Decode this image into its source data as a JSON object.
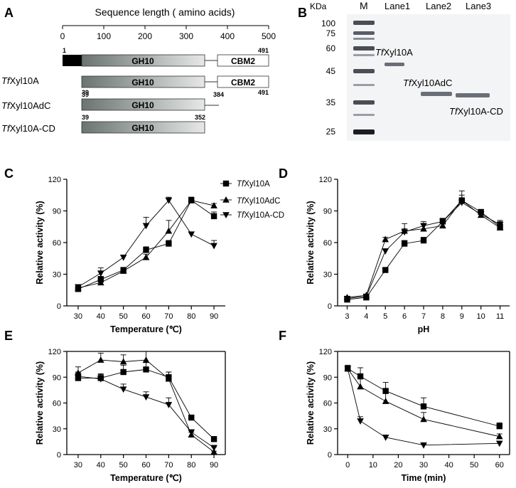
{
  "panel_labels": {
    "A": "A",
    "B": "B",
    "C": "C",
    "D": "D",
    "E": "E",
    "F": "F"
  },
  "panel_a": {
    "scale_title": "Sequence length ( amino acids)",
    "scale_ticks": [
      "0",
      "100",
      "200",
      "300",
      "400",
      "500"
    ],
    "full_start": "1",
    "full_end": "491",
    "domain_gh10": "GH10",
    "domain_cbm2": "CBM2",
    "constructs": [
      {
        "italic": "Tf",
        "rest": "Xyl10A",
        "start": "39",
        "end": "491",
        "has_cbm2": true
      },
      {
        "italic": "Tf",
        "rest": "Xyl10AdC",
        "start": "39",
        "end": "384",
        "has_cbm2": false
      },
      {
        "italic": "Tf",
        "rest": "Xyl10A-CD",
        "start": "39",
        "end": "352",
        "has_cbm2": false
      }
    ]
  },
  "panel_b": {
    "kda_label": "KDa",
    "marker_label": "M",
    "lanes": [
      "Lane1",
      "Lane2",
      "Lane3"
    ],
    "markers": [
      "100",
      "75",
      "60",
      "45",
      "35",
      "25"
    ],
    "band_labels": [
      {
        "italic": "Tf",
        "rest": "Xyl10A"
      },
      {
        "italic": "Tf",
        "rest": "Xyl10AdC"
      },
      {
        "italic": "Tf",
        "rest": "Xyl10A-CD"
      }
    ],
    "background_color": "#f3f4f6",
    "band_color": "#6a6e76"
  },
  "legend": [
    {
      "italic": "Tf",
      "rest": "Xyl10A",
      "marker": "square"
    },
    {
      "italic": "Tf",
      "rest": "Xyl10AdC",
      "marker": "triangle-up"
    },
    {
      "italic": "Tf",
      "rest": "Xyl10A-CD",
      "marker": "triangle-down"
    }
  ],
  "chart_data": [
    {
      "panel": "C",
      "type": "line",
      "xlabel": "Temperature (℃)",
      "ylabel": "Relative activity (%)",
      "x": [
        30,
        40,
        50,
        60,
        70,
        80,
        90
      ],
      "xlim": [
        25,
        95
      ],
      "ylim": [
        0,
        120
      ],
      "yticks": [
        0,
        30,
        60,
        90,
        120
      ],
      "series": [
        {
          "name": "TfXyl10A",
          "values": [
            16,
            25,
            34,
            53,
            59,
            100,
            85
          ],
          "errors": [
            2,
            3,
            2,
            3,
            3,
            3,
            4
          ]
        },
        {
          "name": "TfXyl10AdC",
          "values": [
            17,
            22,
            33,
            46,
            71,
            100,
            95
          ],
          "errors": [
            2,
            3,
            2,
            3,
            10,
            3,
            2
          ]
        },
        {
          "name": "TfXyl10A-CD",
          "values": [
            18,
            31,
            46,
            76,
            100,
            68,
            57
          ],
          "errors": [
            2,
            5,
            2,
            8,
            3,
            2,
            5
          ]
        }
      ]
    },
    {
      "panel": "D",
      "type": "line",
      "xlabel": "pH",
      "ylabel": "Relative activity (%)",
      "x": [
        3,
        4,
        5,
        6,
        7,
        8,
        9,
        10,
        11
      ],
      "xlim": [
        2.5,
        11.5
      ],
      "ylim": [
        0,
        120
      ],
      "yticks": [
        0,
        30,
        60,
        90,
        120
      ],
      "series": [
        {
          "name": "TfXyl10A",
          "values": [
            6,
            8,
            34,
            59,
            62,
            80,
            100,
            89,
            75
          ],
          "errors": [
            1,
            1,
            2,
            3,
            3,
            3,
            9,
            2,
            6
          ]
        },
        {
          "name": "TfXyl10AdC",
          "values": [
            8,
            10,
            63,
            71,
            73,
            76,
            100,
            86,
            74
          ],
          "errors": [
            1,
            1,
            2,
            7,
            4,
            3,
            5,
            2,
            3
          ]
        },
        {
          "name": "TfXyl10A-CD",
          "values": [
            7,
            9,
            52,
            70,
            76,
            80,
            98,
            87,
            77
          ],
          "errors": [
            1,
            1,
            2,
            3,
            4,
            3,
            4,
            2,
            3
          ]
        }
      ]
    },
    {
      "panel": "E",
      "type": "line",
      "xlabel": "Temperature (℃)",
      "ylabel": "Relative activity (%)",
      "x": [
        30,
        40,
        50,
        60,
        70,
        80,
        90
      ],
      "xlim": [
        25,
        95
      ],
      "ylim": [
        0,
        120
      ],
      "yticks": [
        0,
        30,
        60,
        90,
        120
      ],
      "series": [
        {
          "name": "TfXyl10A",
          "values": [
            89,
            89,
            96,
            99,
            90,
            43,
            18
          ],
          "errors": [
            6,
            5,
            8,
            8,
            6,
            3,
            2
          ]
        },
        {
          "name": "TfXyl10AdC",
          "values": [
            95,
            110,
            108,
            110,
            88,
            23,
            3
          ],
          "errors": [
            7,
            8,
            8,
            10,
            8,
            3,
            1
          ]
        },
        {
          "name": "TfXyl10A-CD",
          "values": [
            91,
            88,
            76,
            67,
            58,
            26,
            8
          ],
          "errors": [
            5,
            5,
            6,
            6,
            8,
            3,
            1
          ]
        }
      ]
    },
    {
      "panel": "F",
      "type": "line",
      "xlabel": "Time (min)",
      "ylabel": "Relative activity (%)",
      "x": [
        0,
        5,
        15,
        30,
        60
      ],
      "xticks": [
        0,
        10,
        20,
        30,
        40,
        50,
        60
      ],
      "xlim": [
        -4,
        64
      ],
      "ylim": [
        0,
        120
      ],
      "yticks": [
        0,
        30,
        60,
        90,
        120
      ],
      "series": [
        {
          "name": "TfXyl10A",
          "values": [
            100,
            91,
            74,
            56,
            33
          ],
          "errors": [
            4,
            10,
            10,
            10,
            4
          ]
        },
        {
          "name": "TfXyl10AdC",
          "values": [
            100,
            79,
            62,
            41,
            21
          ],
          "errors": [
            3,
            9,
            9,
            8,
            3
          ]
        },
        {
          "name": "TfXyl10A-CD",
          "values": [
            100,
            39,
            20,
            11,
            13
          ],
          "errors": [
            3,
            5,
            2,
            1,
            2
          ]
        }
      ]
    }
  ]
}
